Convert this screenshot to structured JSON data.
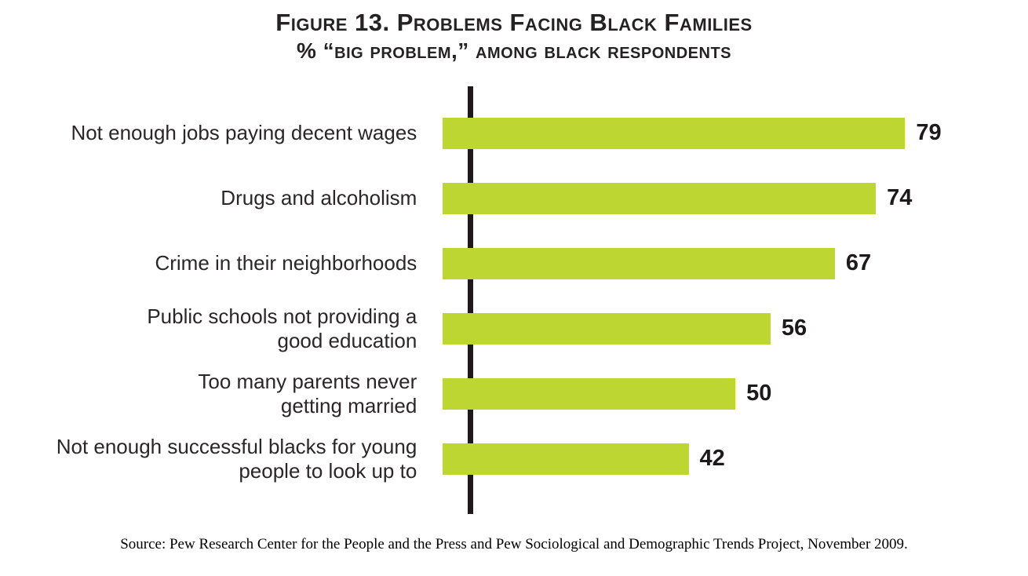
{
  "figure": {
    "title": "Figure 13. Problems Facing Black Families",
    "subtitle": "% “big problem,” among black respondents",
    "source": "Source: Pew Research Center for the People and the Press and Pew Sociological and Demographic Trends Project, November 2009."
  },
  "colors": {
    "bar": "#bdd631",
    "axis": "#1e1a1b",
    "text": "#262223"
  },
  "chart_data": {
    "type": "bar",
    "orientation": "horizontal",
    "title": "Figure 13. Problems Facing Black Families",
    "subtitle": "% “big problem,” among black respondents",
    "categories": [
      "Not enough jobs paying decent wages",
      "Drugs and alcoholism",
      "Crime in their neighborhoods",
      "Public schools not providing a good education",
      "Too many parents never getting married",
      "Not enough successful blacks for young people to look up to"
    ],
    "category_display": [
      "Not enough jobs paying decent wages",
      "Drugs and alcoholism",
      "Crime in their neighborhoods",
      "Public schools not providing a\ngood education",
      "Too many parents never\ngetting married",
      "Not enough successful blacks for young\npeople to look up to"
    ],
    "values": [
      79,
      74,
      67,
      56,
      50,
      42
    ],
    "value_labels": [
      "79",
      "74",
      "67",
      "56",
      "50",
      "42"
    ],
    "unit": "percent",
    "xlim": [
      0,
      100
    ],
    "grid": false,
    "legend": "none",
    "value_labels_position": "right-of-bar"
  }
}
